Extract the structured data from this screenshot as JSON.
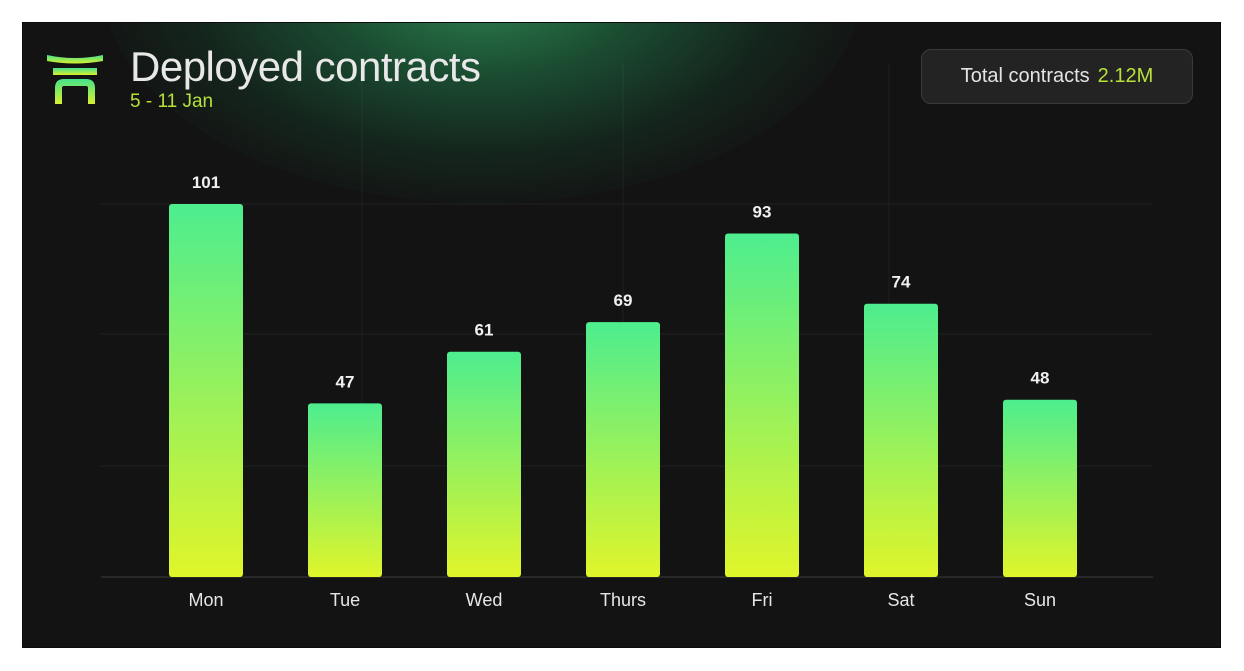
{
  "header": {
    "logo_icon": "torii-gate-icon",
    "title": "Deployed contracts",
    "subtitle": "5 - 11 Jan"
  },
  "summary": {
    "label": "Total contracts",
    "value": "2.12M"
  },
  "colors": {
    "background": "#131313",
    "accent": "#b7e23a",
    "bar_top": "#4ded8f",
    "bar_bottom": "#e0f52a",
    "glow": "#2e8c54"
  },
  "chart_data": {
    "type": "bar",
    "title": "Deployed contracts",
    "subtitle": "5 - 11 Jan",
    "categories": [
      "Mon",
      "Tue",
      "Wed",
      "Thurs",
      "Fri",
      "Sat",
      "Sun"
    ],
    "values": [
      101,
      47,
      61,
      69,
      93,
      74,
      48
    ],
    "value_labels": [
      "101",
      "47",
      "61",
      "69",
      "93",
      "74",
      "48"
    ],
    "xlabel": "",
    "ylabel": "",
    "ylim": [
      0,
      101
    ],
    "grid": true,
    "data_labels": true
  }
}
